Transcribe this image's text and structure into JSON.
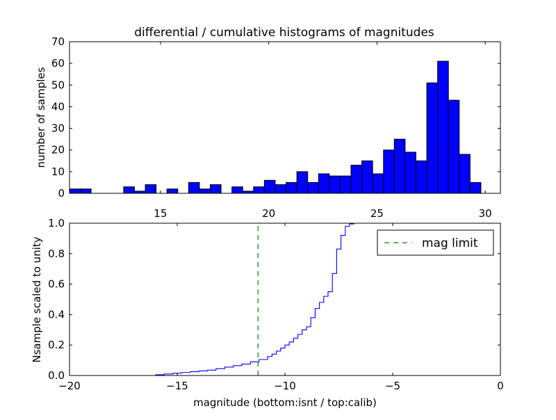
{
  "chart_data": [
    {
      "type": "bar",
      "title": "differential / cumulative histograms of magnitudes",
      "xlabel": "",
      "ylabel": "number of samples",
      "xlim": [
        10.8,
        30.7
      ],
      "ylim": [
        0,
        70
      ],
      "xticks": [
        "15",
        "20",
        "25",
        "30"
      ],
      "yticks": [
        "0",
        "10",
        "20",
        "30",
        "40",
        "50",
        "60",
        "70"
      ],
      "bin_width": 0.5,
      "bins": [
        {
          "left": 10.8,
          "value": 2
        },
        {
          "left": 11.3,
          "value": 2
        },
        {
          "left": 11.8,
          "value": 0
        },
        {
          "left": 12.3,
          "value": 0
        },
        {
          "left": 12.8,
          "value": 0
        },
        {
          "left": 13.3,
          "value": 3
        },
        {
          "left": 13.8,
          "value": 1
        },
        {
          "left": 14.3,
          "value": 4
        },
        {
          "left": 14.8,
          "value": 0
        },
        {
          "left": 15.3,
          "value": 2
        },
        {
          "left": 15.8,
          "value": 0
        },
        {
          "left": 16.3,
          "value": 5
        },
        {
          "left": 16.8,
          "value": 2
        },
        {
          "left": 17.3,
          "value": 4
        },
        {
          "left": 17.8,
          "value": 0
        },
        {
          "left": 18.3,
          "value": 3
        },
        {
          "left": 18.8,
          "value": 1
        },
        {
          "left": 19.3,
          "value": 3
        },
        {
          "left": 19.8,
          "value": 6
        },
        {
          "left": 20.3,
          "value": 4
        },
        {
          "left": 20.8,
          "value": 5
        },
        {
          "left": 21.3,
          "value": 10
        },
        {
          "left": 21.8,
          "value": 5
        },
        {
          "left": 22.3,
          "value": 9
        },
        {
          "left": 22.8,
          "value": 8
        },
        {
          "left": 23.3,
          "value": 8
        },
        {
          "left": 23.8,
          "value": 13
        },
        {
          "left": 24.3,
          "value": 15
        },
        {
          "left": 24.8,
          "value": 9
        },
        {
          "left": 25.3,
          "value": 20
        },
        {
          "left": 25.8,
          "value": 25
        },
        {
          "left": 26.3,
          "value": 19
        },
        {
          "left": 26.8,
          "value": 15
        },
        {
          "left": 27.3,
          "value": 51
        },
        {
          "left": 27.8,
          "value": 61
        },
        {
          "left": 28.3,
          "value": 43
        },
        {
          "left": 28.8,
          "value": 18
        },
        {
          "left": 29.3,
          "value": 5
        }
      ],
      "bar_color": "#0000ff",
      "edge_color": "#000000",
      "grid": false
    },
    {
      "type": "line",
      "title": "",
      "xlabel": "magnitude (bottom:isnt / top:calib)",
      "ylabel": "Nsample scaled to unity",
      "xlim": [
        -20,
        0
      ],
      "ylim": [
        0,
        1
      ],
      "xticks": [
        "−20",
        "−15",
        "−10",
        "−5",
        "0"
      ],
      "yticks": [
        "0.0",
        "0.2",
        "0.4",
        "0.6",
        "0.8",
        "1.0"
      ],
      "grid": false,
      "legend_position": "top-right",
      "series": [
        {
          "name": "",
          "style": "steps",
          "color": "#0000ff",
          "x": [
            -20,
            -16.4,
            -16.0,
            -15.6,
            -15.2,
            -14.8,
            -14.4,
            -14.0,
            -13.6,
            -13.2,
            -12.8,
            -12.4,
            -12.0,
            -11.6,
            -11.2,
            -10.8,
            -10.6,
            -10.4,
            -10.2,
            -10.0,
            -9.8,
            -9.6,
            -9.4,
            -9.2,
            -9.0,
            -8.8,
            -8.6,
            -8.4,
            -8.2,
            -8.0,
            -7.8,
            -7.6,
            -7.4,
            -7.2,
            -7.0,
            -6.8,
            -6.6
          ],
          "y": [
            0,
            0,
            0.005,
            0.01,
            0.015,
            0.02,
            0.025,
            0.03,
            0.035,
            0.045,
            0.055,
            0.065,
            0.075,
            0.09,
            0.105,
            0.125,
            0.14,
            0.16,
            0.18,
            0.2,
            0.22,
            0.245,
            0.27,
            0.3,
            0.32,
            0.38,
            0.44,
            0.48,
            0.52,
            0.55,
            0.67,
            0.83,
            0.92,
            0.98,
            0.995,
            1.0,
            1.0
          ]
        },
        {
          "name": "mag limit",
          "style": "dashed",
          "color": "#008000",
          "x": [
            -11.25,
            -11.25
          ],
          "y": [
            0,
            1
          ]
        }
      ]
    }
  ]
}
